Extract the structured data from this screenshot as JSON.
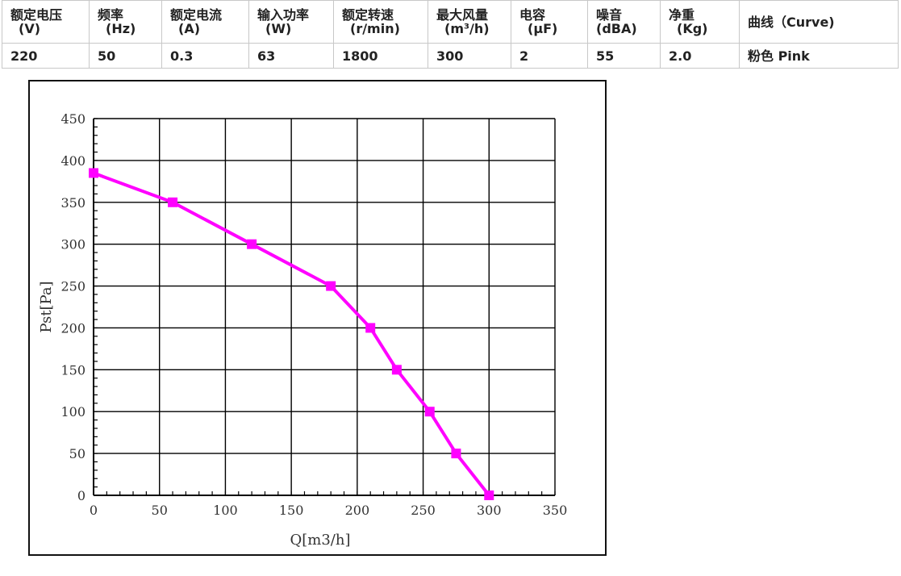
{
  "spec_table": {
    "headers": [
      {
        "name": "额定电压",
        "unit": "(V)"
      },
      {
        "name": "频率",
        "unit": "(Hz)"
      },
      {
        "name": "额定电流",
        "unit": "(A)"
      },
      {
        "name": "输入功率",
        "unit": "(W)"
      },
      {
        "name": "额定转速",
        "unit": "(r/min)"
      },
      {
        "name": "最大风量",
        "unit": "(m³/h)"
      },
      {
        "name": "电容",
        "unit": "(μF)"
      },
      {
        "name": "噪音",
        "unit": "(dBA)"
      },
      {
        "name": "净重",
        "unit": "(Kg)"
      },
      {
        "name": "曲线（Curve)",
        "unit": ""
      }
    ],
    "values": [
      "220",
      "50",
      "0.3",
      "63",
      "1800",
      "300",
      "2",
      "55",
      "2.0",
      "粉色 Pink"
    ]
  },
  "chart_data": {
    "type": "line",
    "xlabel": "Q[m3/h]",
    "ylabel": "Pst[Pa]",
    "xlim": [
      0,
      350
    ],
    "ylim": [
      0,
      450
    ],
    "xticks": [
      0,
      50,
      100,
      150,
      200,
      250,
      300,
      350
    ],
    "yticks": [
      0,
      50,
      100,
      150,
      200,
      250,
      300,
      350,
      400,
      450
    ],
    "grid": true,
    "series": [
      {
        "color": "#ff00ff",
        "marker": "square",
        "x": [
          0,
          60,
          120,
          180,
          210,
          230,
          255,
          275,
          300
        ],
        "y": [
          385,
          350,
          300,
          250,
          200,
          150,
          100,
          50,
          0
        ]
      }
    ]
  }
}
